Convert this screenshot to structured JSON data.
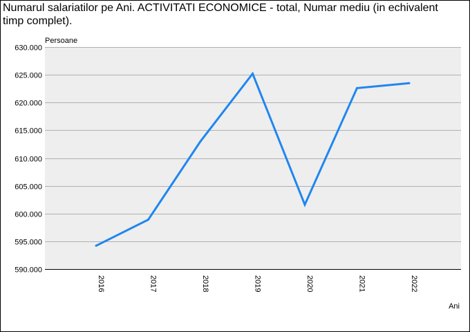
{
  "title": "Numarul salariatilor pe Ani. ACTIVITATI ECONOMICE - total, Numar mediu (in echivalent timp complet).",
  "colors": {
    "plot_background": "#eeeeee",
    "gridline": "#b0b0b0",
    "line": "#1f86f0",
    "axis": "#000000"
  },
  "chart_data": {
    "type": "line",
    "title": "Numarul salariatilor pe Ani. ACTIVITATI ECONOMICE - total, Numar mediu (in echivalent timp complet).",
    "xlabel": "Ani",
    "ylabel": "Persoane",
    "categories": [
      "2016",
      "2017",
      "2018",
      "2019",
      "2020",
      "2021",
      "2022"
    ],
    "series": [
      {
        "values": [
          594200,
          598900,
          613000,
          625200,
          601600,
          622600,
          623500
        ]
      }
    ],
    "ylim": [
      590000,
      630000
    ],
    "yticks": [
      590000,
      595000,
      600000,
      605000,
      610000,
      615000,
      620000,
      625000,
      630000
    ],
    "ytick_labels": [
      "590.000",
      "595.000",
      "600.000",
      "605.000",
      "610.000",
      "615.000",
      "620.000",
      "625.000",
      "630.000"
    ],
    "grid": true,
    "legend": "none"
  }
}
